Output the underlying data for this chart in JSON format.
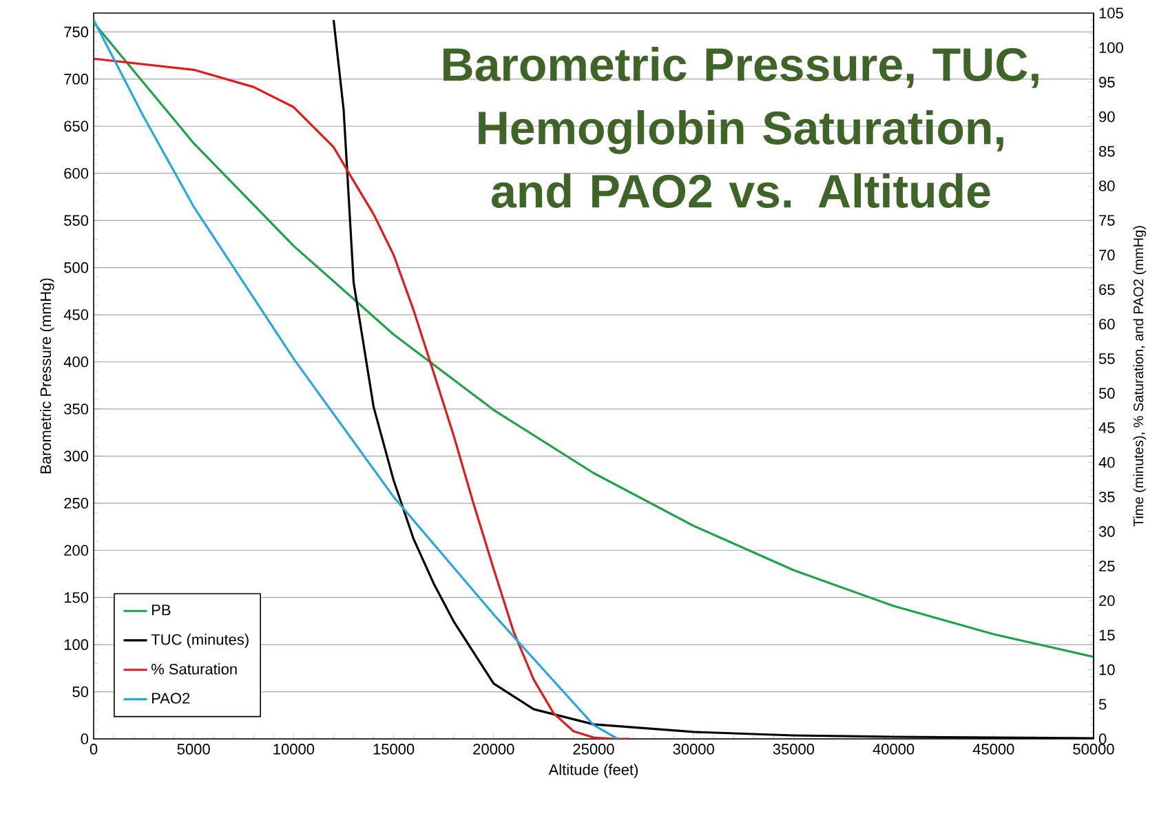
{
  "chart_data": {
    "type": "line",
    "title": "Barometric Pressure, TUC, Hemoglobin Saturation, and PAO2 vs. Altitude",
    "xlabel": "Altitude (feet)",
    "ylabel": "Barometric Pressure (mmHg)",
    "y2label": "Time (minutes), % Saturation, and PAO2 (mmHg)",
    "xlim": [
      0,
      50000
    ],
    "xticks": [
      0,
      5000,
      10000,
      15000,
      20000,
      25000,
      30000,
      35000,
      40000,
      45000,
      50000
    ],
    "ylim": [
      0,
      770
    ],
    "yticks": [
      0,
      50,
      100,
      150,
      200,
      250,
      300,
      350,
      400,
      450,
      500,
      550,
      600,
      650,
      700,
      750
    ],
    "y2lim": [
      0,
      105
    ],
    "y2ticks": [
      0,
      5,
      10,
      15,
      20,
      25,
      30,
      35,
      40,
      45,
      50,
      55,
      60,
      65,
      70,
      75,
      80,
      85,
      90,
      95,
      100,
      105
    ],
    "grid": "y",
    "legend": "bottom left",
    "series": [
      {
        "name": "PB",
        "color": "#1fa34a",
        "x": [
          0,
          5000,
          10000,
          15000,
          20000,
          25000,
          30000,
          35000,
          40000,
          45000,
          50000
        ],
        "values": [
          760,
          632,
          523,
          429,
          349,
          282,
          226,
          179,
          141,
          111,
          87
        ]
      },
      {
        "name": "TUC (minutes)",
        "color": "#000000",
        "axis": "y2",
        "x": [
          12000,
          12500,
          13000,
          13500,
          14000,
          15000,
          16000,
          17000,
          18000,
          20000,
          22000,
          25000,
          30000,
          35000,
          40000,
          50000
        ],
        "values": [
          104,
          91,
          66,
          57,
          48,
          37.4,
          28.9,
          22.5,
          17,
          8,
          4.3,
          2.1,
          1.0,
          0.5,
          0.3,
          0.1
        ]
      },
      {
        "name": "% Saturation",
        "color": "#e31a1c",
        "axis": "y2",
        "x": [
          0,
          5000,
          8000,
          10000,
          12000,
          13000,
          14000,
          15000,
          16000,
          17000,
          18000,
          19000,
          20000,
          21000,
          22000,
          23000,
          24000,
          25000,
          26000,
          26800
        ],
        "values": [
          98.4,
          96.8,
          94.3,
          91.4,
          85.6,
          80.7,
          75.9,
          70,
          62,
          53,
          43.9,
          34,
          24.6,
          15.5,
          8.6,
          3.7,
          1.1,
          0.2,
          0,
          0
        ]
      },
      {
        "name": "PAO2",
        "color": "#29a8e0",
        "axis": "y2",
        "x": [
          0,
          2500,
          5000,
          10000,
          15000,
          20000,
          25000,
          26200
        ],
        "values": [
          104,
          90,
          77,
          55,
          35,
          18,
          2,
          0
        ]
      }
    ]
  }
}
